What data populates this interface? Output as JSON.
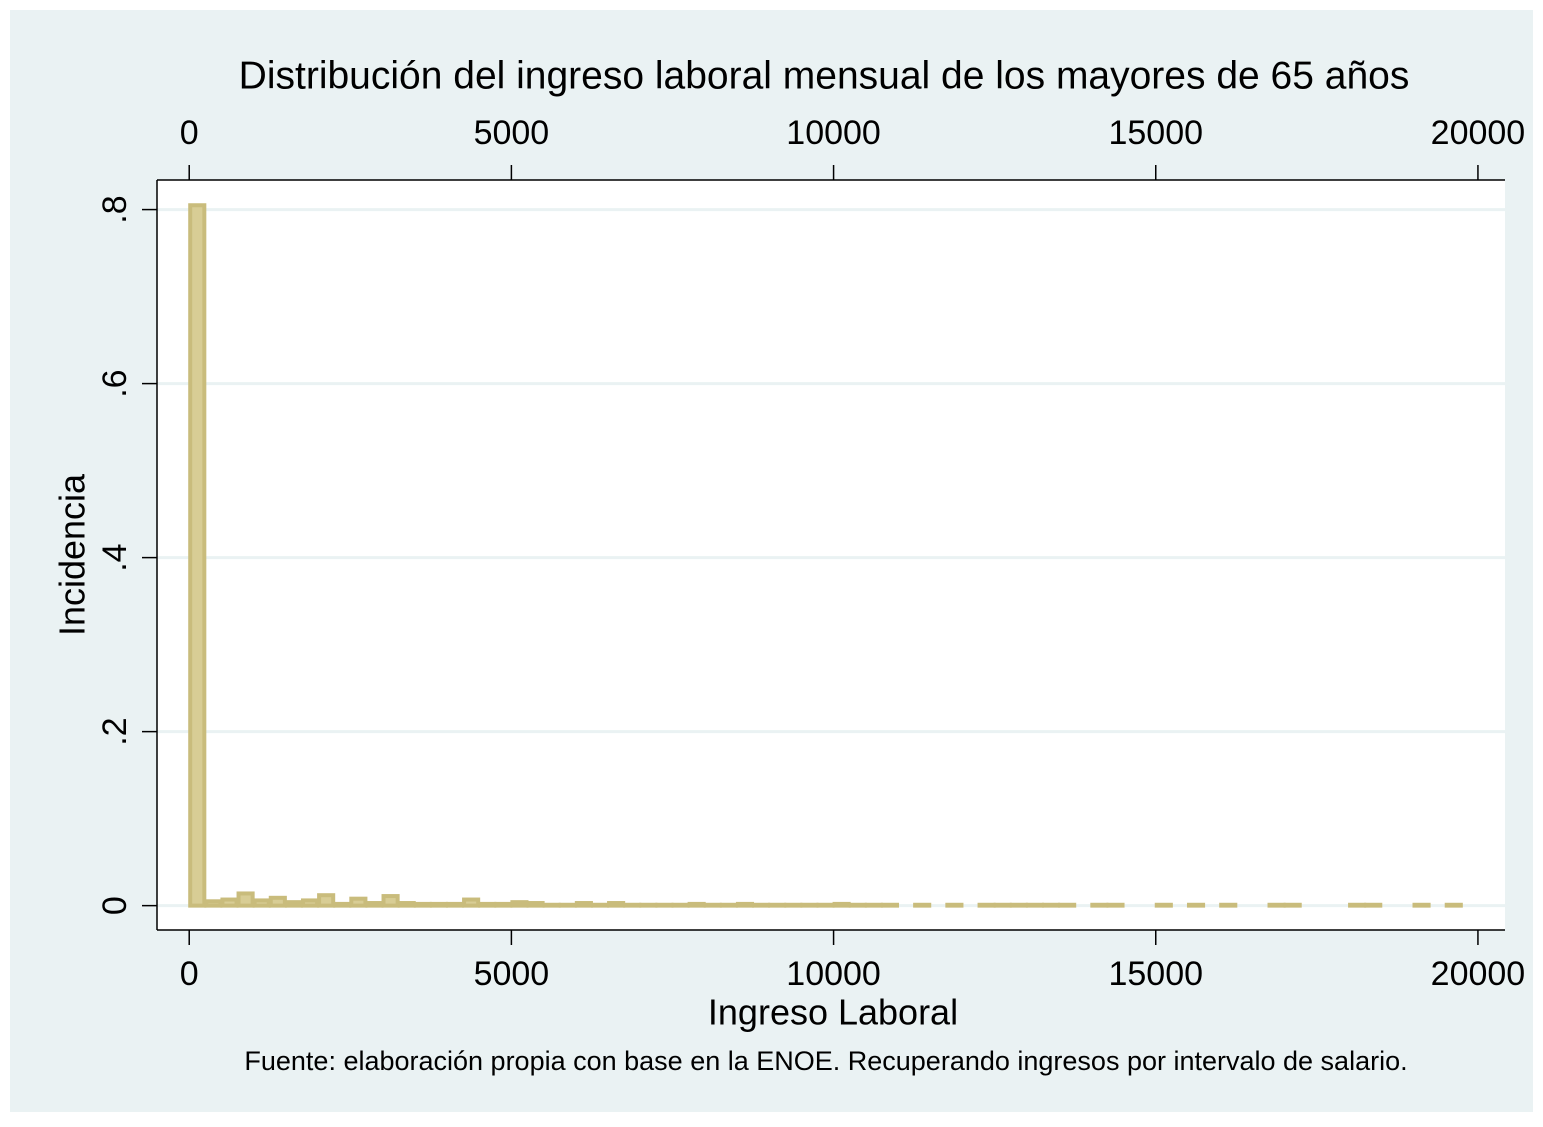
{
  "chart_data": {
    "type": "histogram",
    "title": "Distribución del ingreso laboral mensual de los mayores de 65 años",
    "xlabel": "Ingreso Laboral",
    "ylabel": "Incidencia",
    "note": "Fuente: elaboración propia con base en la ENOE. Recuperando ingresos por intervalo de salario.",
    "bins": [
      0,
      250,
      500,
      750,
      1000,
      1250,
      1500,
      1750,
      2000,
      2250,
      2500,
      2750,
      3000,
      3250,
      3500,
      3750,
      4000,
      4250,
      4500,
      4750,
      5000,
      5250,
      5500,
      5750,
      6000,
      6250,
      6500,
      6750,
      7000,
      7250,
      7500,
      7750,
      8000,
      8250,
      8500,
      8750,
      9000,
      9250,
      9500,
      9750,
      10000,
      10250,
      10500,
      10750,
      11000,
      11250,
      11500,
      11750,
      12000,
      12250,
      12500,
      12750,
      13000,
      13250,
      13500,
      13750,
      14000,
      14250,
      14500,
      14750,
      15000,
      15250,
      15500,
      15750,
      16000,
      16250,
      16500,
      16750,
      17000,
      17250,
      17500,
      17750,
      18000,
      18250,
      18500,
      18750,
      19000,
      19250,
      19500,
      19750
    ],
    "values": [
      0.805,
      0.005,
      0.007,
      0.014,
      0.006,
      0.009,
      0.004,
      0.006,
      0.012,
      0.002,
      0.008,
      0.003,
      0.011,
      0.003,
      0.002,
      0.002,
      0.002,
      0.007,
      0.002,
      0.002,
      0.004,
      0.003,
      0.001,
      0.001,
      0.003,
      0.001,
      0.003,
      0.001,
      0.001,
      0.001,
      0.001,
      0.002,
      0.001,
      0.001,
      0.002,
      0.001,
      0.001,
      0.001,
      0.001,
      0.001,
      0.002,
      0.001,
      0.001,
      0.001,
      0,
      0.001,
      0,
      0.001,
      0,
      0.001,
      0.001,
      0.001,
      0.001,
      0.001,
      0.001,
      0,
      0.001,
      0.001,
      0,
      0,
      0.001,
      0,
      0.001,
      0,
      0.001,
      0,
      0,
      0.001,
      0.001,
      0,
      0,
      0,
      0.001,
      0.001,
      0,
      0,
      0.001,
      0,
      0.001
    ],
    "color": "#d8cd95",
    "edgecolor": "#c9bc7c",
    "xlim": [
      -500,
      20420
    ],
    "xticks": [
      0,
      5000,
      10000,
      15000,
      20000
    ],
    "ylim": [
      -0.028,
      0.834
    ],
    "yticks": [
      0,
      {
        "value": 0.2,
        "label": ".2"
      },
      {
        "value": 0.4,
        "label": ".4"
      },
      {
        "value": 0.6,
        "label": ".6"
      },
      {
        "value": 0.8,
        "label": ".8"
      }
    ],
    "grid": true
  }
}
